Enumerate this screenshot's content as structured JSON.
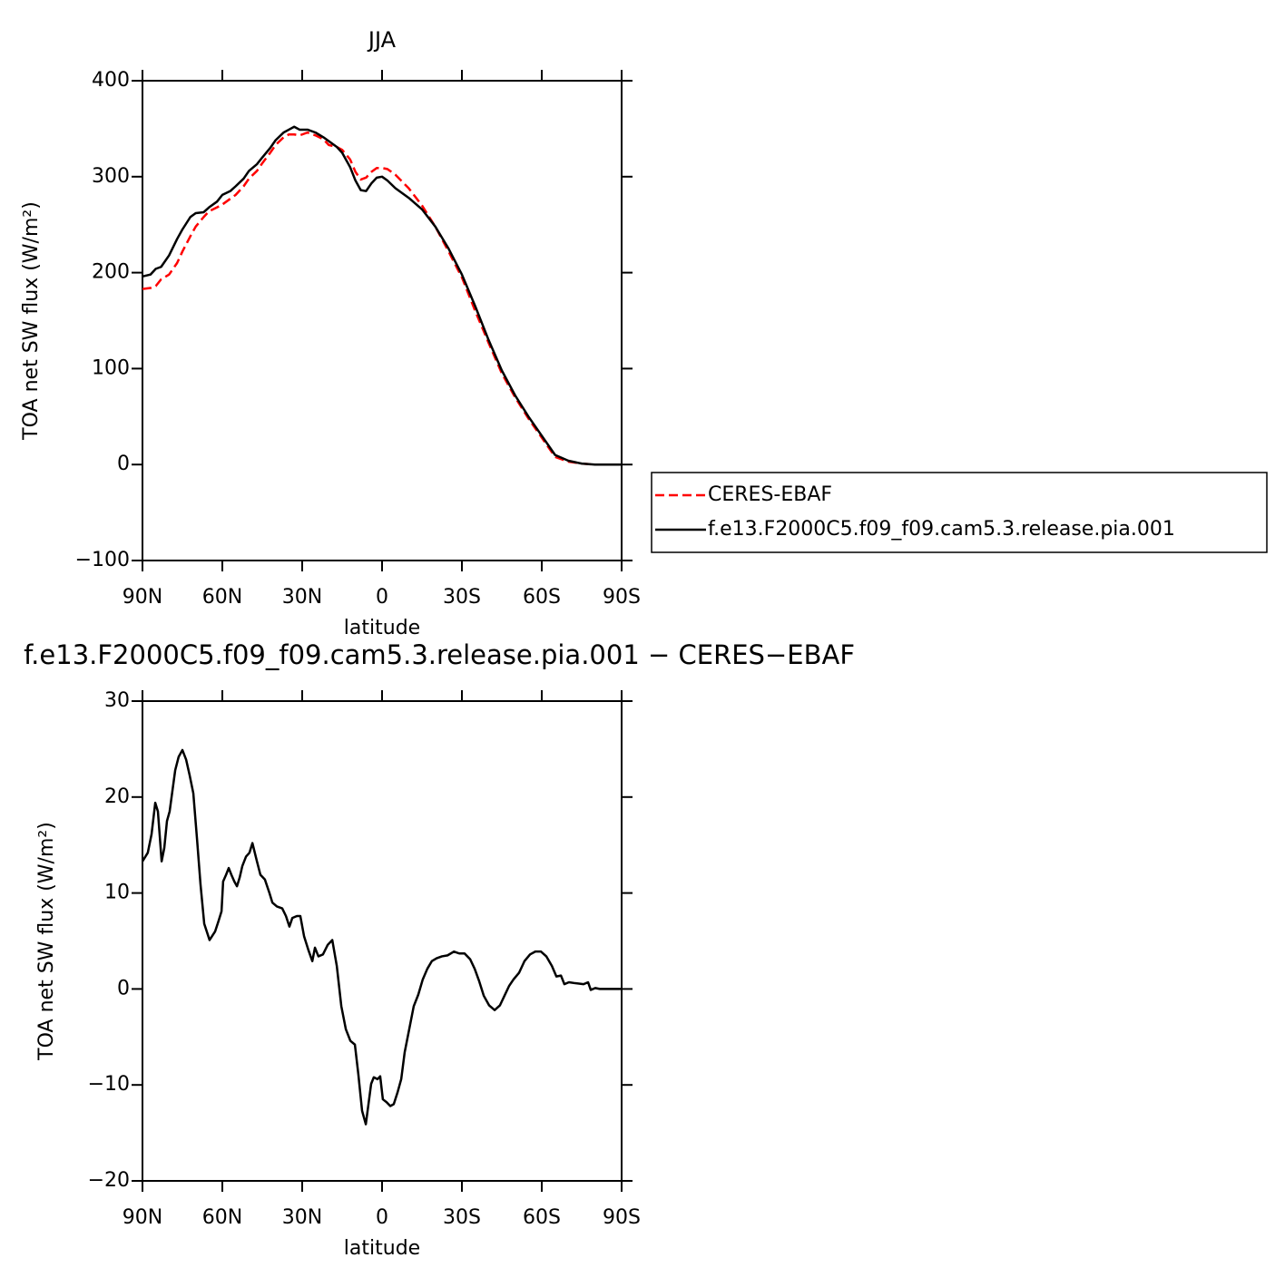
{
  "chart_data": [
    {
      "type": "line",
      "title": "JJA",
      "xlabel": "latitude",
      "ylabel": "TOA net SW flux (W/m²)",
      "x": [
        90,
        87,
        85,
        83,
        80,
        77,
        75,
        72,
        70,
        67,
        65,
        62,
        60,
        57,
        55,
        52,
        50,
        47,
        45,
        42,
        40,
        37,
        35,
        33,
        31,
        28,
        25,
        22,
        20,
        17,
        15,
        12,
        10,
        8,
        6,
        4,
        2,
        0,
        -2,
        -5,
        -10,
        -15,
        -20,
        -25,
        -30,
        -35,
        -40,
        -45,
        -50,
        -55,
        -60,
        -65,
        -70,
        -75,
        -80,
        -90
      ],
      "series": [
        {
          "name": "CERES-EBAF",
          "color": "#ff0000",
          "linestyle": "dashed",
          "values": [
            183,
            184,
            186,
            193,
            198,
            210,
            222,
            238,
            248,
            258,
            264,
            268,
            271,
            277,
            281,
            290,
            298,
            306,
            314,
            325,
            333,
            341,
            344,
            344,
            343,
            346,
            343,
            339,
            333,
            331,
            328,
            318,
            305,
            297,
            299,
            305,
            309,
            309,
            308,
            302,
            288,
            270,
            248,
            222,
            195,
            160,
            127,
            95,
            70,
            48,
            28,
            8,
            3,
            1,
            0,
            0
          ]
        },
        {
          "name": "f.e13.F2000C5.f09_f09.cam5.3.release.pia.001",
          "color": "#000000",
          "linestyle": "solid",
          "values": [
            196,
            198,
            204,
            206,
            218,
            235,
            245,
            258,
            262,
            263,
            268,
            274,
            281,
            285,
            290,
            298,
            306,
            313,
            320,
            330,
            338,
            346,
            349,
            352,
            349,
            349,
            346,
            341,
            337,
            331,
            325,
            310,
            296,
            286,
            285,
            293,
            299,
            300,
            296,
            288,
            278,
            266,
            248,
            225,
            198,
            165,
            130,
            98,
            72,
            50,
            30,
            10,
            4,
            1,
            0,
            0
          ]
        }
      ],
      "xlim": [
        90,
        -90
      ],
      "xticks": [
        {
          "value": 90,
          "label": "90N"
        },
        {
          "value": 60,
          "label": "60N"
        },
        {
          "value": 30,
          "label": "30N"
        },
        0,
        {
          "value": -30,
          "label": "30S"
        },
        {
          "value": -60,
          "label": "60S"
        },
        {
          "value": -90,
          "label": "90S"
        }
      ],
      "ylim": [
        -100,
        400
      ],
      "yticks": [
        {
          "value": -100,
          "label": "−100"
        },
        0,
        100,
        200,
        300,
        400
      ],
      "legend": "right"
    },
    {
      "type": "line",
      "title": "f.e13.F2000C5.f09_f09.cam5.3.release.pia.001 − CERES−EBAF",
      "xlabel": "latitude",
      "ylabel": "TOA net SW flux (W/m²)",
      "x": [
        90,
        88,
        86.6,
        85.2,
        84.2,
        82.8,
        81.8,
        80.8,
        79.8,
        77.7,
        76.4,
        75,
        73.6,
        72.3,
        70.9,
        69.5,
        68.2,
        66.8,
        64.8,
        62.7,
        61.4,
        60.3,
        59.7,
        58.6,
        57.6,
        56.6,
        55.5,
        54.5,
        53.5,
        52.5,
        51.1,
        49.8,
        48.7,
        47,
        45.7,
        44,
        42.3,
        41.2,
        39.5,
        37.5,
        36.1,
        34.8,
        33.7,
        32,
        30.7,
        29.3,
        27.6,
        26.2,
        25.2,
        23.9,
        22.2,
        20.4,
        18.7,
        17,
        15.3,
        13.6,
        11.9,
        10.2,
        8.9,
        7.5,
        6.1,
        5.1,
        4.1,
        3.1,
        1.7,
        0.7,
        -0.3,
        -1.7,
        -3.1,
        -4.4,
        -5.8,
        -7.2,
        -8.5,
        -10.2,
        -11.9,
        -13.6,
        -15.3,
        -17,
        -18.7,
        -20.5,
        -22.5,
        -24.6,
        -27,
        -29,
        -31,
        -33.1,
        -34.8,
        -36.5,
        -38.2,
        -40.2,
        -42.3,
        -44.3,
        -46,
        -47.7,
        -49.4,
        -51.5,
        -53.5,
        -55.6,
        -57.6,
        -59.7,
        -61.7,
        -63.8,
        -65.5,
        -67.2,
        -68.5,
        -70.2,
        -72.6,
        -75.7,
        -77.4,
        -78.4,
        -80.1,
        -81.8,
        -84.9,
        -90
      ],
      "values": [
        13.3,
        14.2,
        16.1,
        19.4,
        18.5,
        13.3,
        14.7,
        17.5,
        18.5,
        22.8,
        24.2,
        24.9,
        23.9,
        22.3,
        20.4,
        15.6,
        10.9,
        6.8,
        5.1,
        6.0,
        7.1,
        8.1,
        11.2,
        11.9,
        12.6,
        11.9,
        11.2,
        10.7,
        11.6,
        12.8,
        13.8,
        14.2,
        15.2,
        13.3,
        11.9,
        11.4,
        10.0,
        9.0,
        8.6,
        8.4,
        7.6,
        6.5,
        7.4,
        7.6,
        7.6,
        5.5,
        4.0,
        2.9,
        4.3,
        3.4,
        3.6,
        4.6,
        5.1,
        2.4,
        -1.8,
        -4.2,
        -5.4,
        -5.8,
        -8.9,
        -12.7,
        -14.1,
        -12.0,
        -9.9,
        -9.2,
        -9.4,
        -9.1,
        -11.5,
        -11.8,
        -12.2,
        -12.0,
        -10.8,
        -9.4,
        -6.6,
        -4.2,
        -1.8,
        -0.6,
        1.0,
        2.1,
        2.9,
        3.2,
        3.4,
        3.5,
        3.9,
        3.7,
        3.7,
        3.1,
        2.1,
        0.8,
        -0.7,
        -1.7,
        -2.2,
        -1.7,
        -0.7,
        0.3,
        1.0,
        1.7,
        2.9,
        3.6,
        3.9,
        3.9,
        3.4,
        2.4,
        1.3,
        1.4,
        0.5,
        0.7,
        0.6,
        0.5,
        0.7,
        -0.1,
        0.1,
        0.0,
        0.0,
        0.0
      ],
      "color": "#000000",
      "xlim": [
        90,
        -90
      ],
      "xticks": [
        {
          "value": 90,
          "label": "90N"
        },
        {
          "value": 60,
          "label": "60N"
        },
        {
          "value": 30,
          "label": "30N"
        },
        0,
        {
          "value": -30,
          "label": "30S"
        },
        {
          "value": -60,
          "label": "60S"
        },
        {
          "value": -90,
          "label": "90S"
        }
      ],
      "ylim": [
        -20,
        30
      ],
      "yticks": [
        {
          "value": -20,
          "label": "−20"
        },
        {
          "value": -10,
          "label": "−10"
        },
        0,
        10,
        20,
        30
      ]
    }
  ]
}
